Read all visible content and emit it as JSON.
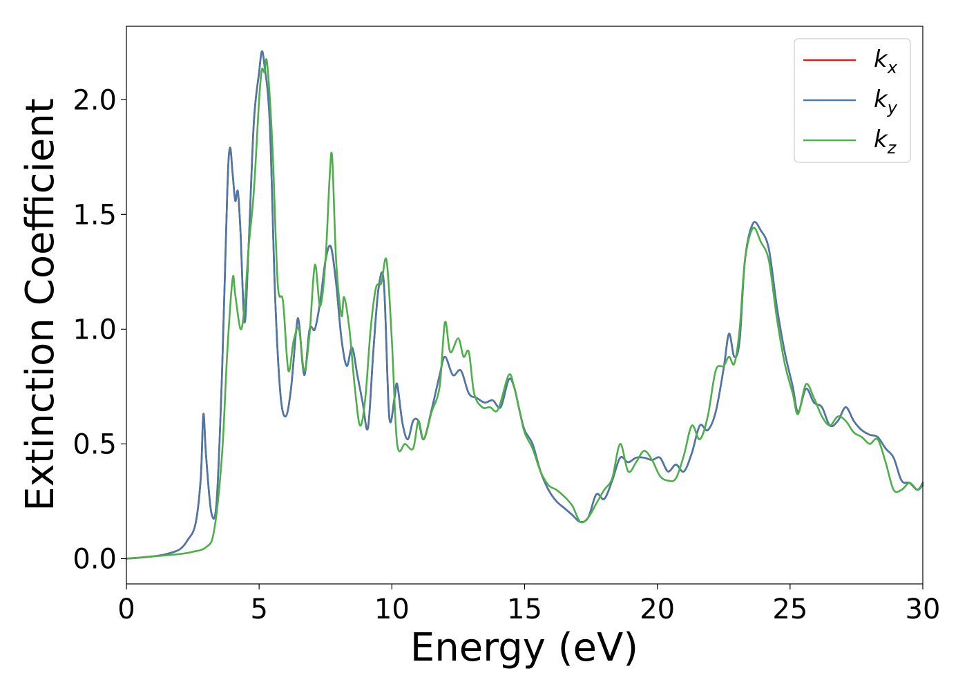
{
  "chart_data": {
    "type": "line",
    "xlabel": "Energy (eV)",
    "ylabel": "Extinction Coefficient",
    "xlim": [
      0,
      30
    ],
    "ylim": [
      -0.11,
      2.32
    ],
    "xticks": [
      "0",
      "5",
      "10",
      "15",
      "20",
      "25",
      "30"
    ],
    "yticks": [
      "0.0",
      "0.5",
      "1.0",
      "1.5",
      "2.0"
    ],
    "grid": false,
    "legend_position": "top-right",
    "series": [
      {
        "name": "k",
        "subscript": "x",
        "color": "#e41a1c",
        "x": [
          0,
          1,
          1.5,
          2,
          2.3,
          2.6,
          2.8,
          2.9,
          3.0,
          3.2,
          3.4,
          3.6,
          3.8,
          3.9,
          4.0,
          4.1,
          4.2,
          4.3,
          4.45,
          4.6,
          4.8,
          5.0,
          5.1,
          5.2,
          5.4,
          5.6,
          5.8,
          6.0,
          6.2,
          6.4,
          6.5,
          6.7,
          6.9,
          7.1,
          7.3,
          7.5,
          7.7,
          7.9,
          8.1,
          8.3,
          8.5,
          8.7,
          8.9,
          9.1,
          9.3,
          9.5,
          9.7,
          9.9,
          10.1,
          10.2,
          10.4,
          10.6,
          10.8,
          11.0,
          11.2,
          11.5,
          11.8,
          12.0,
          12.3,
          12.6,
          12.9,
          13.2,
          13.5,
          13.8,
          14.1,
          14.4,
          14.6,
          14.8,
          15.0,
          15.3,
          15.6,
          15.9,
          16.2,
          16.5,
          16.8,
          17.1,
          17.4,
          17.7,
          18.0,
          18.3,
          18.6,
          18.9,
          19.2,
          19.5,
          19.8,
          20.1,
          20.4,
          20.7,
          21.0,
          21.3,
          21.6,
          21.9,
          22.2,
          22.5,
          22.7,
          22.9,
          23.1,
          23.3,
          23.6,
          23.9,
          24.2,
          24.5,
          24.8,
          25.1,
          25.3,
          25.6,
          25.9,
          26.2,
          26.5,
          26.8,
          27.1,
          27.4,
          27.7,
          28.0,
          28.3,
          28.6,
          28.9,
          29.2,
          29.5,
          29.8,
          30
        ],
        "values": [
          0.0,
          0.01,
          0.02,
          0.04,
          0.08,
          0.15,
          0.35,
          0.63,
          0.45,
          0.2,
          0.25,
          0.8,
          1.6,
          1.79,
          1.68,
          1.56,
          1.6,
          1.42,
          1.03,
          1.35,
          1.9,
          2.12,
          2.21,
          2.15,
          1.9,
          1.15,
          0.72,
          0.62,
          0.74,
          1.0,
          1.03,
          0.8,
          1.0,
          1.0,
          1.12,
          1.3,
          1.36,
          1.2,
          0.96,
          0.84,
          0.92,
          0.8,
          0.68,
          0.57,
          0.9,
          1.18,
          1.2,
          0.62,
          0.7,
          0.76,
          0.59,
          0.52,
          0.6,
          0.6,
          0.52,
          0.65,
          0.8,
          0.88,
          0.8,
          0.82,
          0.72,
          0.7,
          0.68,
          0.69,
          0.66,
          0.78,
          0.75,
          0.65,
          0.56,
          0.5,
          0.38,
          0.3,
          0.25,
          0.22,
          0.19,
          0.16,
          0.18,
          0.28,
          0.26,
          0.34,
          0.44,
          0.42,
          0.44,
          0.44,
          0.43,
          0.44,
          0.38,
          0.41,
          0.38,
          0.46,
          0.58,
          0.56,
          0.64,
          0.83,
          0.98,
          0.88,
          0.95,
          1.3,
          1.46,
          1.43,
          1.35,
          1.1,
          0.9,
          0.75,
          0.64,
          0.74,
          0.68,
          0.66,
          0.58,
          0.6,
          0.66,
          0.6,
          0.56,
          0.54,
          0.53,
          0.48,
          0.44,
          0.34,
          0.33,
          0.3,
          0.33
        ]
      },
      {
        "name": "k",
        "subscript": "y",
        "color": "#4a79a9",
        "x": [
          0,
          1,
          1.5,
          2,
          2.3,
          2.6,
          2.8,
          2.9,
          3.0,
          3.2,
          3.4,
          3.6,
          3.8,
          3.9,
          4.0,
          4.1,
          4.2,
          4.3,
          4.45,
          4.6,
          4.8,
          5.0,
          5.1,
          5.2,
          5.4,
          5.6,
          5.8,
          6.0,
          6.2,
          6.4,
          6.5,
          6.7,
          6.9,
          7.1,
          7.3,
          7.5,
          7.7,
          7.9,
          8.1,
          8.3,
          8.5,
          8.7,
          8.9,
          9.1,
          9.3,
          9.5,
          9.7,
          9.9,
          10.1,
          10.2,
          10.4,
          10.6,
          10.8,
          11.0,
          11.2,
          11.5,
          11.8,
          12.0,
          12.3,
          12.6,
          12.9,
          13.2,
          13.5,
          13.8,
          14.1,
          14.4,
          14.6,
          14.8,
          15.0,
          15.3,
          15.6,
          15.9,
          16.2,
          16.5,
          16.8,
          17.1,
          17.4,
          17.7,
          18.0,
          18.3,
          18.6,
          18.9,
          19.2,
          19.5,
          19.8,
          20.1,
          20.4,
          20.7,
          21.0,
          21.3,
          21.6,
          21.9,
          22.2,
          22.5,
          22.7,
          22.9,
          23.1,
          23.3,
          23.6,
          23.9,
          24.2,
          24.5,
          24.8,
          25.1,
          25.3,
          25.6,
          25.9,
          26.2,
          26.5,
          26.8,
          27.1,
          27.4,
          27.7,
          28.0,
          28.3,
          28.6,
          28.9,
          29.2,
          29.5,
          29.8,
          30
        ],
        "values": [
          0.0,
          0.01,
          0.02,
          0.04,
          0.08,
          0.15,
          0.35,
          0.63,
          0.45,
          0.2,
          0.25,
          0.8,
          1.6,
          1.79,
          1.68,
          1.56,
          1.6,
          1.42,
          1.03,
          1.35,
          1.9,
          2.12,
          2.21,
          2.15,
          1.9,
          1.15,
          0.72,
          0.62,
          0.74,
          1.0,
          1.03,
          0.8,
          1.0,
          1.0,
          1.12,
          1.3,
          1.36,
          1.2,
          0.96,
          0.84,
          0.92,
          0.8,
          0.68,
          0.57,
          0.9,
          1.18,
          1.2,
          0.62,
          0.7,
          0.76,
          0.59,
          0.52,
          0.6,
          0.6,
          0.52,
          0.65,
          0.8,
          0.88,
          0.8,
          0.82,
          0.72,
          0.7,
          0.68,
          0.69,
          0.66,
          0.78,
          0.75,
          0.65,
          0.56,
          0.5,
          0.38,
          0.3,
          0.25,
          0.22,
          0.19,
          0.16,
          0.18,
          0.28,
          0.26,
          0.34,
          0.44,
          0.42,
          0.44,
          0.44,
          0.43,
          0.44,
          0.38,
          0.41,
          0.38,
          0.46,
          0.58,
          0.56,
          0.64,
          0.83,
          0.98,
          0.88,
          0.95,
          1.3,
          1.46,
          1.43,
          1.35,
          1.1,
          0.9,
          0.75,
          0.64,
          0.74,
          0.68,
          0.66,
          0.58,
          0.6,
          0.66,
          0.6,
          0.56,
          0.54,
          0.53,
          0.48,
          0.44,
          0.34,
          0.33,
          0.3,
          0.33
        ]
      },
      {
        "name": "k",
        "subscript": "z",
        "color": "#4daf4a",
        "x": [
          0,
          1,
          2,
          2.5,
          3.0,
          3.3,
          3.6,
          3.8,
          4.0,
          4.1,
          4.3,
          4.45,
          4.6,
          4.8,
          5.0,
          5.1,
          5.2,
          5.3,
          5.5,
          5.7,
          5.9,
          6.1,
          6.3,
          6.5,
          6.7,
          6.9,
          7.1,
          7.3,
          7.5,
          7.65,
          7.75,
          7.9,
          8.1,
          8.2,
          8.4,
          8.6,
          8.8,
          9.0,
          9.2,
          9.4,
          9.6,
          9.8,
          10.0,
          10.2,
          10.5,
          10.8,
          11.0,
          11.2,
          11.5,
          11.8,
          12.0,
          12.2,
          12.5,
          12.7,
          12.9,
          13.1,
          13.4,
          13.7,
          14.0,
          14.4,
          14.6,
          14.8,
          15.0,
          15.3,
          15.6,
          15.9,
          16.2,
          16.5,
          16.8,
          17.1,
          17.4,
          17.7,
          18.0,
          18.3,
          18.6,
          18.9,
          19.2,
          19.5,
          19.8,
          20.1,
          20.4,
          20.7,
          21.0,
          21.3,
          21.6,
          21.9,
          22.2,
          22.5,
          22.7,
          22.9,
          23.1,
          23.3,
          23.6,
          23.9,
          24.2,
          24.5,
          24.8,
          25.1,
          25.3,
          25.6,
          25.9,
          26.2,
          26.5,
          26.8,
          27.1,
          27.4,
          27.7,
          28.0,
          28.3,
          28.6,
          28.9,
          29.2,
          29.5,
          29.8,
          30
        ],
        "values": [
          0.0,
          0.01,
          0.02,
          0.03,
          0.05,
          0.12,
          0.45,
          0.9,
          1.22,
          1.15,
          1.0,
          1.1,
          1.35,
          1.6,
          2.0,
          2.13,
          2.12,
          2.16,
          1.8,
          1.2,
          1.12,
          0.82,
          0.95,
          1.0,
          0.82,
          0.98,
          1.28,
          1.1,
          1.3,
          1.65,
          1.75,
          1.3,
          1.06,
          1.14,
          1.0,
          0.75,
          0.58,
          0.7,
          1.0,
          1.18,
          1.2,
          1.3,
          0.95,
          0.5,
          0.5,
          0.48,
          0.6,
          0.52,
          0.64,
          0.75,
          1.03,
          0.9,
          0.96,
          0.88,
          0.9,
          0.72,
          0.66,
          0.66,
          0.65,
          0.8,
          0.75,
          0.65,
          0.55,
          0.48,
          0.38,
          0.32,
          0.3,
          0.27,
          0.23,
          0.16,
          0.18,
          0.24,
          0.3,
          0.35,
          0.5,
          0.38,
          0.42,
          0.47,
          0.43,
          0.36,
          0.34,
          0.35,
          0.45,
          0.58,
          0.52,
          0.62,
          0.82,
          0.84,
          0.88,
          0.85,
          1.0,
          1.3,
          1.44,
          1.38,
          1.3,
          1.05,
          0.85,
          0.72,
          0.63,
          0.76,
          0.7,
          0.62,
          0.58,
          0.62,
          0.6,
          0.55,
          0.53,
          0.5,
          0.52,
          0.42,
          0.3,
          0.3,
          0.33,
          0.3,
          0.32
        ]
      }
    ]
  }
}
